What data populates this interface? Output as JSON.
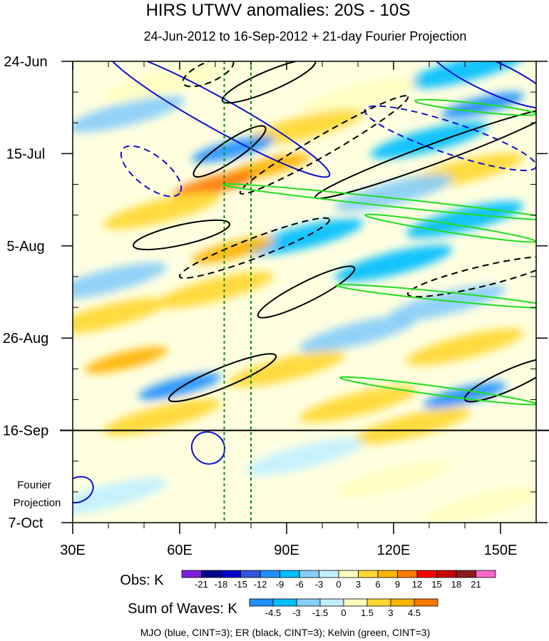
{
  "chart_data": {
    "type": "heatmap",
    "title": "HIRS UTWV anomalies: 20S - 10S",
    "subtitle": "24-Jun-2012 to 16-Sep-2012 + 21-day Fourier Projection",
    "x_axis": {
      "range": [
        30,
        160
      ],
      "ticks": [
        30,
        60,
        90,
        120,
        150
      ],
      "tick_labels": [
        "30E",
        "60E",
        "90E",
        "120E",
        "150E"
      ]
    },
    "y_axis": {
      "range_days": [
        0,
        105
      ],
      "ticks_days": [
        0,
        21,
        42,
        63,
        84,
        105
      ],
      "tick_labels": [
        "24-Jun",
        "15-Jul",
        "5-Aug",
        "26-Aug",
        "16-Sep",
        "7-Oct"
      ],
      "projection_boundary_day": 84,
      "projection_label_line1": "Fourier",
      "projection_label_line2": "Projection"
    },
    "reference_lines_lon": [
      72.5,
      80
    ],
    "obs_colorbar": {
      "label": "Obs: K",
      "levels": [
        "-21",
        "-18",
        "-15",
        "-12",
        "-9",
        "-6",
        "-3",
        "0",
        "3",
        "6",
        "9",
        "12",
        "15",
        "18",
        "21"
      ],
      "colors": [
        "#7f1fe0",
        "#00008b",
        "#0000c8",
        "#3355dd",
        "#1e90ff",
        "#00bfff",
        "#87cefa",
        "#c0f0ff",
        "#ffffc0",
        "#ffd832",
        "#ffb400",
        "#ff7800",
        "#ff0000",
        "#c80000",
        "#8b1a1a",
        "#ff66c8"
      ]
    },
    "waves_colorbar": {
      "label": "Sum of Waves: K",
      "levels": [
        "-4.5",
        "-3",
        "-1.5",
        "0",
        "1.5",
        "3",
        "4.5"
      ],
      "colors": [
        "#1e90ff",
        "#00bfff",
        "#87cefa",
        "#c0f0ff",
        "#ffffc0",
        "#ffd832",
        "#ffb400",
        "#ff7800"
      ]
    },
    "footer": "MJO (blue, CINT=3); ER (black, CINT=3); Kelvin (green, CINT=3)",
    "anomaly_bands": [
      {
        "day": 2,
        "lon": 140,
        "value": -6
      },
      {
        "day": 5,
        "lon": 55,
        "value": 3
      },
      {
        "day": 8,
        "lon": 110,
        "value": 3
      },
      {
        "day": 10,
        "lon": 145,
        "value": -9
      },
      {
        "day": 12,
        "lon": 45,
        "value": -3
      },
      {
        "day": 15,
        "lon": 95,
        "value": 6
      },
      {
        "day": 18,
        "lon": 130,
        "value": -6
      },
      {
        "day": 20,
        "lon": 75,
        "value": -9
      },
      {
        "day": 24,
        "lon": 85,
        "value": 9
      },
      {
        "day": 25,
        "lon": 140,
        "value": 6
      },
      {
        "day": 28,
        "lon": 70,
        "value": 12
      },
      {
        "day": 30,
        "lon": 120,
        "value": -3
      },
      {
        "day": 34,
        "lon": 55,
        "value": 6
      },
      {
        "day": 36,
        "lon": 140,
        "value": -6
      },
      {
        "day": 40,
        "lon": 95,
        "value": -6
      },
      {
        "day": 43,
        "lon": 75,
        "value": 9
      },
      {
        "day": 46,
        "lon": 120,
        "value": -6
      },
      {
        "day": 50,
        "lon": 40,
        "value": -3
      },
      {
        "day": 52,
        "lon": 70,
        "value": 6
      },
      {
        "day": 55,
        "lon": 135,
        "value": -3
      },
      {
        "day": 58,
        "lon": 40,
        "value": 6
      },
      {
        "day": 62,
        "lon": 110,
        "value": -3
      },
      {
        "day": 65,
        "lon": 140,
        "value": 6
      },
      {
        "day": 68,
        "lon": 45,
        "value": 9
      },
      {
        "day": 70,
        "lon": 90,
        "value": 6
      },
      {
        "day": 74,
        "lon": 60,
        "value": -9
      },
      {
        "day": 76,
        "lon": 140,
        "value": -9
      },
      {
        "day": 78,
        "lon": 110,
        "value": 6
      },
      {
        "day": 81,
        "lon": 55,
        "value": 6
      },
      {
        "day": 83,
        "lon": 125,
        "value": 6
      },
      {
        "day": 90,
        "lon": 95,
        "value": -1.5
      },
      {
        "day": 95,
        "lon": 120,
        "value": 1.5
      },
      {
        "day": 99,
        "lon": 40,
        "value": -1.5
      },
      {
        "day": 101,
        "lon": 145,
        "value": 1.5
      }
    ],
    "wave_contours": [
      {
        "wave": "MJO",
        "sign": "positive",
        "points": [
          [
            40,
            -2
          ],
          [
            88,
            20
          ],
          [
            102,
            26
          ]
        ]
      },
      {
        "wave": "MJO",
        "sign": "positive",
        "points": [
          [
            130,
            -3
          ],
          [
            165,
            10
          ]
        ]
      },
      {
        "wave": "MJO",
        "sign": "negative",
        "points": [
          [
            44,
            20
          ],
          [
            86,
            40
          ],
          [
            60,
            30
          ]
        ]
      },
      {
        "wave": "MJO",
        "sign": "negative",
        "points": [
          [
            112,
            11
          ],
          [
            160,
            24
          ]
        ]
      },
      {
        "wave": "MJO",
        "sign": "positive",
        "points": [
          [
            30,
            95
          ],
          [
            33,
            100
          ]
        ]
      },
      {
        "wave": "MJO",
        "sign": "positive",
        "points": [
          [
            64,
            86
          ],
          [
            104,
            95
          ],
          [
            72,
            90
          ]
        ]
      },
      {
        "wave": "ER",
        "sign": "negative",
        "points": [
          [
            61,
            5
          ],
          [
            75,
            0
          ]
        ]
      },
      {
        "wave": "ER",
        "sign": "positive",
        "points": [
          [
            72,
            9
          ],
          [
            98,
            0
          ]
        ]
      },
      {
        "wave": "ER",
        "sign": "positive",
        "points": [
          [
            64,
            26
          ],
          [
            84,
            15
          ]
        ]
      },
      {
        "wave": "ER",
        "sign": "negative",
        "points": [
          [
            77,
            30
          ],
          [
            124,
            8
          ]
        ]
      },
      {
        "wave": "ER",
        "sign": "positive",
        "points": [
          [
            98,
            31
          ],
          [
            165,
            11
          ]
        ]
      },
      {
        "wave": "ER",
        "sign": "positive",
        "points": [
          [
            47,
            42
          ],
          [
            74,
            37
          ]
        ]
      },
      {
        "wave": "ER",
        "sign": "negative",
        "points": [
          [
            60,
            49
          ],
          [
            102,
            36
          ]
        ]
      },
      {
        "wave": "ER",
        "sign": "positive",
        "points": [
          [
            82,
            58
          ],
          [
            109,
            47
          ]
        ]
      },
      {
        "wave": "ER",
        "sign": "negative",
        "points": [
          [
            124,
            53
          ],
          [
            165,
            45
          ]
        ]
      },
      {
        "wave": "ER",
        "sign": "positive",
        "points": [
          [
            57,
            77
          ],
          [
            87,
            67
          ]
        ]
      },
      {
        "wave": "ER",
        "sign": "positive",
        "points": [
          [
            140,
            77
          ],
          [
            165,
            68
          ]
        ]
      },
      {
        "wave": "Kelvin",
        "sign": "positive",
        "points": [
          [
            72,
            28
          ],
          [
            165,
            36
          ]
        ]
      },
      {
        "wave": "Kelvin",
        "sign": "positive",
        "points": [
          [
            112,
            35
          ],
          [
            160,
            41
          ]
        ]
      },
      {
        "wave": "Kelvin",
        "sign": "positive",
        "points": [
          [
            104,
            51
          ],
          [
            165,
            56
          ]
        ]
      },
      {
        "wave": "Kelvin",
        "sign": "positive",
        "points": [
          [
            105,
            72
          ],
          [
            160,
            78
          ]
        ]
      },
      {
        "wave": "Kelvin",
        "sign": "positive",
        "points": [
          [
            126,
            9
          ],
          [
            160,
            12
          ]
        ]
      }
    ]
  }
}
